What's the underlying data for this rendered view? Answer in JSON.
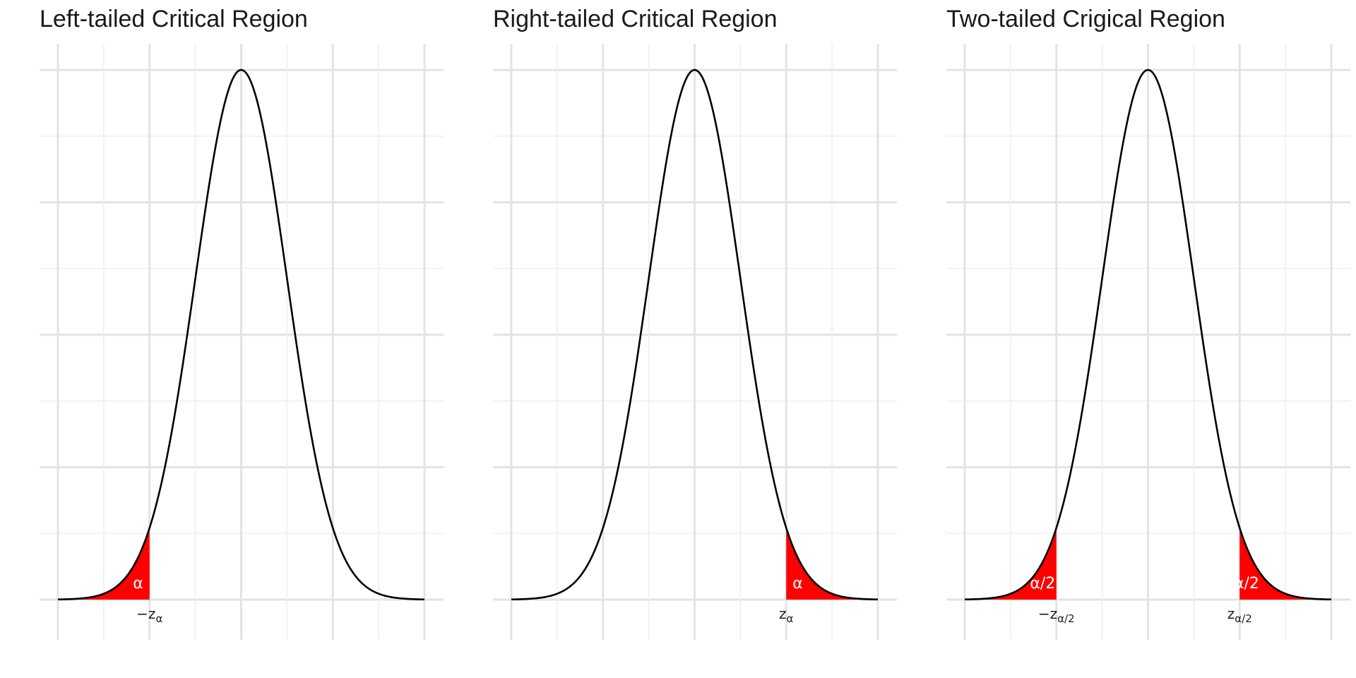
{
  "chart_data": [
    {
      "type": "area",
      "title": "Left-tailed Critical Region",
      "curve": "standard normal density",
      "xlim": [
        -4,
        4
      ],
      "ylim": [
        0,
        0.4
      ],
      "grid": true,
      "critical_values": [
        -2
      ],
      "shaded_regions": [
        [
          -4,
          -2
        ]
      ],
      "fill_color": "#ff0000",
      "tick_labels": [
        {
          "x": -2,
          "text": "−z",
          "sub": "α"
        }
      ],
      "area_labels": [
        {
          "x": -2.25,
          "text": "α"
        }
      ]
    },
    {
      "type": "area",
      "title": "Right-tailed Critical Region",
      "curve": "standard normal density",
      "xlim": [
        -4,
        4
      ],
      "ylim": [
        0,
        0.4
      ],
      "grid": true,
      "critical_values": [
        2
      ],
      "shaded_regions": [
        [
          2,
          4
        ]
      ],
      "fill_color": "#ff0000",
      "tick_labels": [
        {
          "x": 2,
          "text": "z",
          "sub": "α"
        }
      ],
      "area_labels": [
        {
          "x": 2.25,
          "text": "α"
        }
      ]
    },
    {
      "type": "area",
      "title": "Two-tailed Crigical Region",
      "curve": "standard normal density",
      "xlim": [
        -4,
        4
      ],
      "ylim": [
        0,
        0.4
      ],
      "grid": true,
      "critical_values": [
        -2,
        2
      ],
      "shaded_regions": [
        [
          -4,
          -2
        ],
        [
          2,
          4
        ]
      ],
      "fill_color": "#ff0000",
      "tick_labels": [
        {
          "x": -2,
          "text": "−z",
          "sub": "α/2"
        },
        {
          "x": 2,
          "text": "z",
          "sub": "α/2"
        }
      ],
      "area_labels": [
        {
          "x": -2.3,
          "text": "α/2"
        },
        {
          "x": 2.15,
          "text": "α/2"
        }
      ]
    }
  ]
}
